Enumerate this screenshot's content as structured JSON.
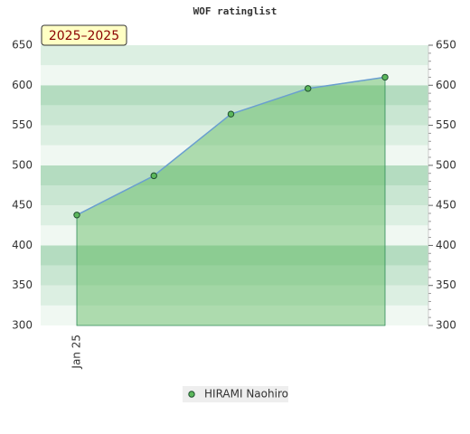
{
  "chart_data": {
    "type": "line",
    "title": "WOF ratinglist",
    "annotation": "2025–2025",
    "categories": [
      "Jan 25",
      null,
      null,
      null,
      null
    ],
    "series": [
      {
        "name": "HIRAMI Naohiro",
        "color": "#5cb85c",
        "values": [
          438,
          487,
          564,
          596,
          610
        ]
      }
    ],
    "ylim": [
      300,
      650
    ],
    "yticks": [
      300,
      350,
      400,
      450,
      500,
      550,
      600,
      650
    ],
    "y2lim": [
      300,
      650
    ],
    "y2ticks": [
      300,
      350,
      400,
      450,
      500,
      550,
      600,
      650
    ],
    "legend": "bottom"
  }
}
